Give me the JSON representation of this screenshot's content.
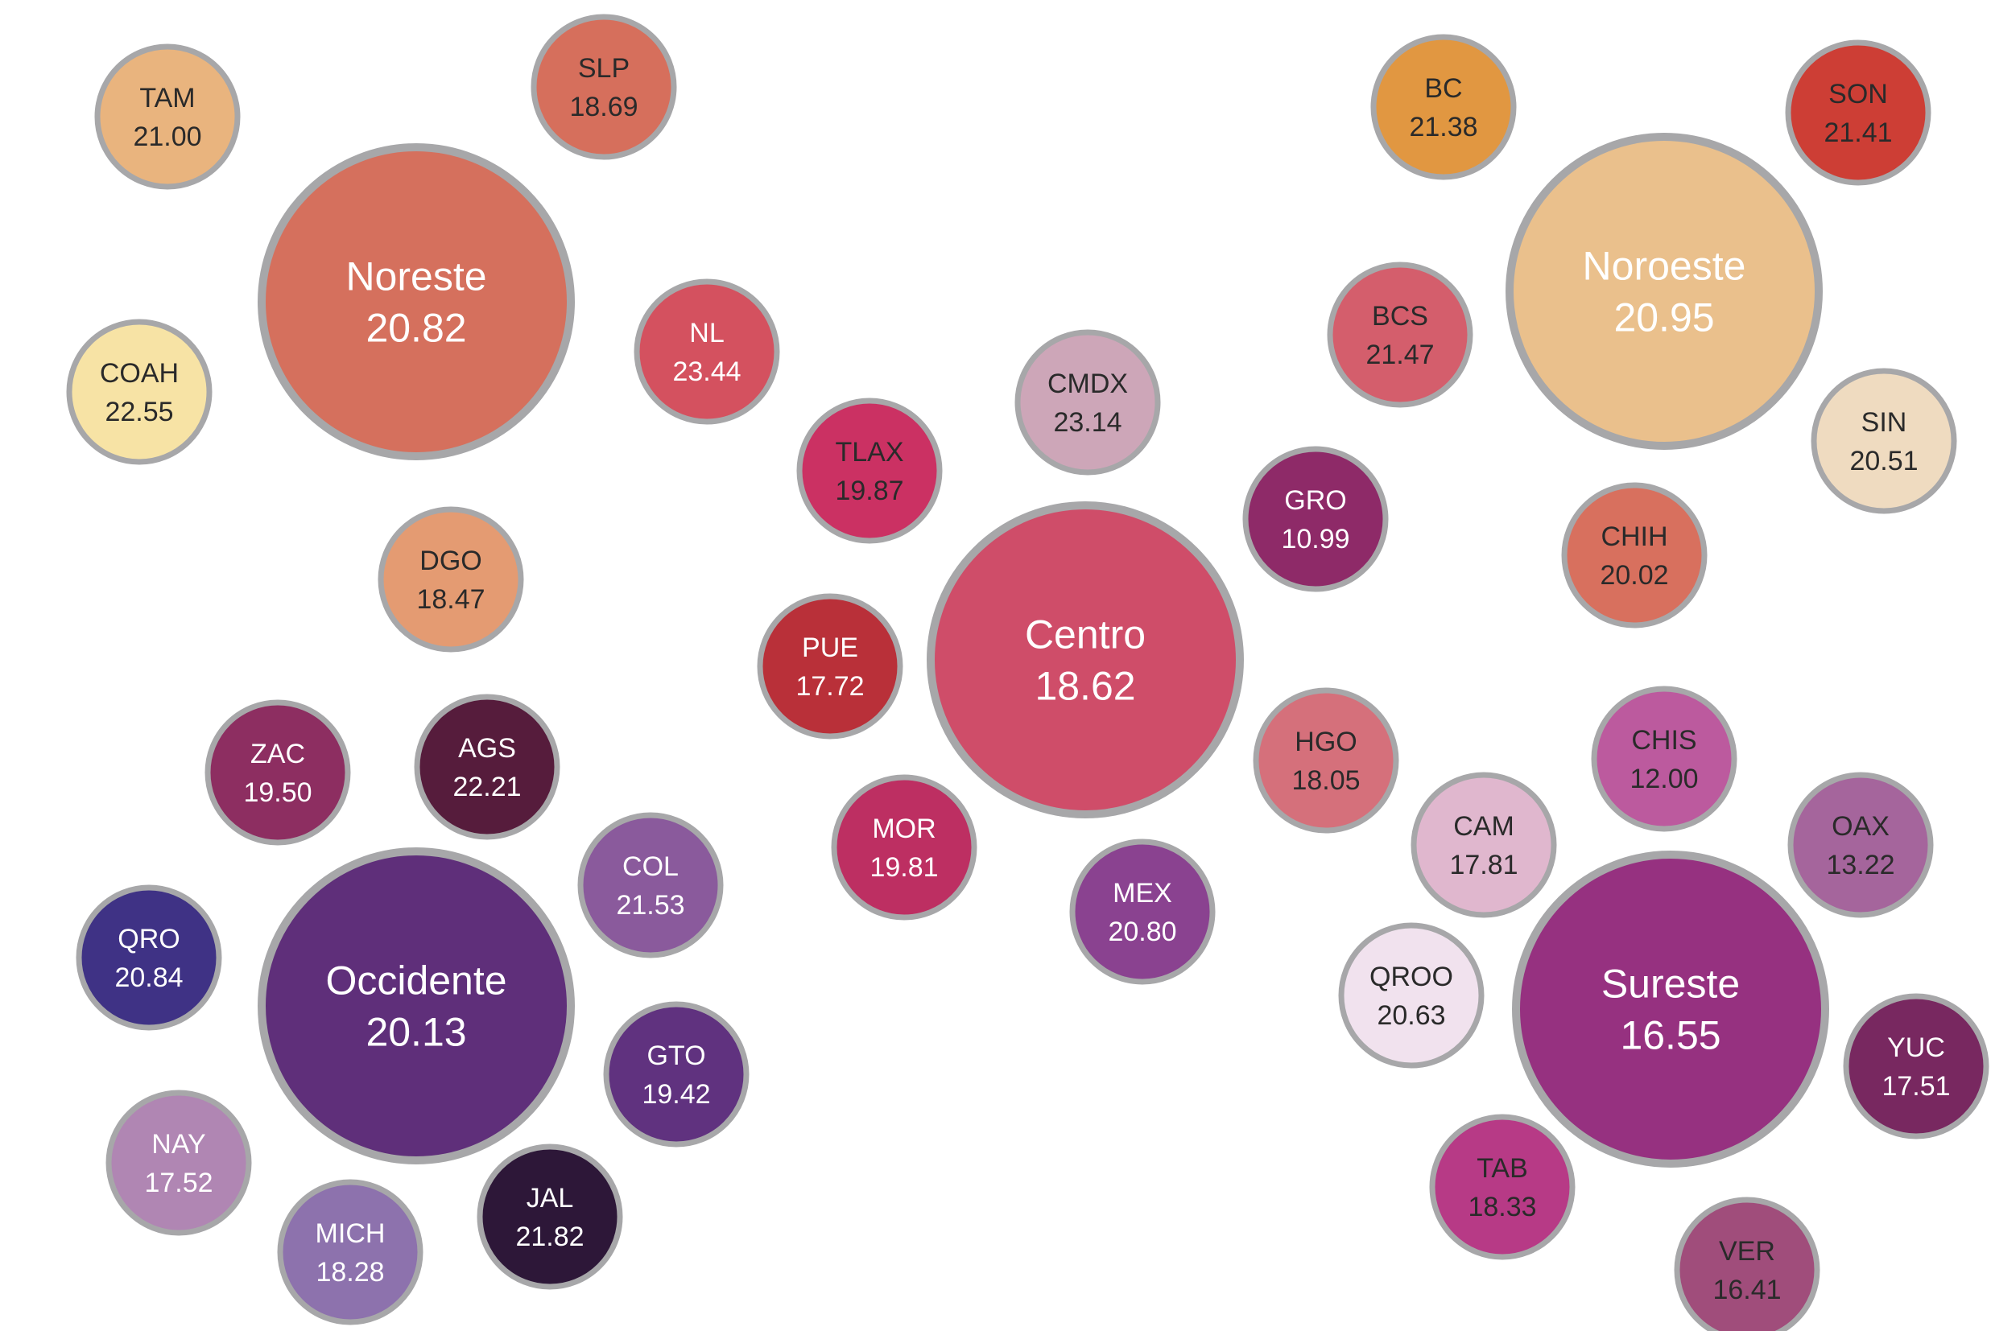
{
  "chart_data": {
    "type": "bubble",
    "border_color": "#a7a7a9",
    "regions": [
      {
        "name": "Noreste",
        "value": "20.82",
        "color": "#d5705d",
        "text_color": "#ffffff"
      },
      {
        "name": "Noroeste",
        "value": "20.95",
        "color": "#eac08c",
        "text_color": "#ffffff"
      },
      {
        "name": "Centro",
        "value": "18.62",
        "color": "#cf4d69",
        "text_color": "#ffffff"
      },
      {
        "name": "Occidente",
        "value": "20.13",
        "color": "#5f2f7a",
        "text_color": "#ffffff"
      },
      {
        "name": "Sureste",
        "value": "16.55",
        "color": "#963180",
        "text_color": "#ffffff"
      }
    ],
    "states": [
      {
        "name": "TAM",
        "value": "21.00",
        "region": "Noreste",
        "color": "#e9b47e",
        "text_color": "#2a2a2a"
      },
      {
        "name": "SLP",
        "value": "18.69",
        "region": "Noreste",
        "color": "#d66f5c",
        "text_color": "#2a2a2a"
      },
      {
        "name": "COAH",
        "value": "22.55",
        "region": "Noreste",
        "color": "#f7e3a5",
        "text_color": "#2a2a2a"
      },
      {
        "name": "NL",
        "value": "23.44",
        "region": "Noreste",
        "color": "#d4515f",
        "text_color": "#ffffff"
      },
      {
        "name": "DGO",
        "value": "18.47",
        "region": "Noreste",
        "color": "#e49b72",
        "text_color": "#2a2a2a"
      },
      {
        "name": "BC",
        "value": "21.38",
        "region": "Noroeste",
        "color": "#e19741",
        "text_color": "#2a2a2a"
      },
      {
        "name": "SON",
        "value": "21.41",
        "region": "Noroeste",
        "color": "#cd3e35",
        "text_color": "#2a2a2a"
      },
      {
        "name": "BCS",
        "value": "21.47",
        "region": "Noroeste",
        "color": "#d45e6c",
        "text_color": "#2a2a2a"
      },
      {
        "name": "SIN",
        "value": "20.51",
        "region": "Noroeste",
        "color": "#efdbc0",
        "text_color": "#2a2a2a"
      },
      {
        "name": "CHIH",
        "value": "20.02",
        "region": "Noroeste",
        "color": "#d8705e",
        "text_color": "#2a2a2a"
      },
      {
        "name": "CMDX",
        "value": "23.14",
        "region": "Centro",
        "color": "#cda6b8",
        "text_color": "#2a2a2a"
      },
      {
        "name": "TLAX",
        "value": "19.87",
        "region": "Centro",
        "color": "#cb3163",
        "text_color": "#2a2a2a"
      },
      {
        "name": "GRO",
        "value": "10.99",
        "region": "Centro",
        "color": "#8e2a68",
        "text_color": "#ffffff"
      },
      {
        "name": "PUE",
        "value": "17.72",
        "region": "Centro",
        "color": "#b93039",
        "text_color": "#ffffff"
      },
      {
        "name": "HGO",
        "value": "18.05",
        "region": "Centro",
        "color": "#d5707b",
        "text_color": "#2a2a2a"
      },
      {
        "name": "MOR",
        "value": "19.81",
        "region": "Centro",
        "color": "#bd2f62",
        "text_color": "#ffffff"
      },
      {
        "name": "MEX",
        "value": "20.80",
        "region": "Centro",
        "color": "#8a4290",
        "text_color": "#ffffff"
      },
      {
        "name": "ZAC",
        "value": "19.50",
        "region": "Occidente",
        "color": "#8d2e61",
        "text_color": "#ffffff"
      },
      {
        "name": "AGS",
        "value": "22.21",
        "region": "Occidente",
        "color": "#561c3c",
        "text_color": "#ffffff"
      },
      {
        "name": "COL",
        "value": "21.53",
        "region": "Occidente",
        "color": "#8a5a9c",
        "text_color": "#ffffff"
      },
      {
        "name": "QRO",
        "value": "20.84",
        "region": "Occidente",
        "color": "#3f3285",
        "text_color": "#ffffff"
      },
      {
        "name": "GTO",
        "value": "19.42",
        "region": "Occidente",
        "color": "#60327f",
        "text_color": "#ffffff"
      },
      {
        "name": "NAY",
        "value": "17.52",
        "region": "Occidente",
        "color": "#b086b3",
        "text_color": "#ffffff"
      },
      {
        "name": "JAL",
        "value": "21.82",
        "region": "Occidente",
        "color": "#2d1738",
        "text_color": "#ffffff"
      },
      {
        "name": "MICH",
        "value": "18.28",
        "region": "Occidente",
        "color": "#8d72ad",
        "text_color": "#ffffff"
      },
      {
        "name": "CHIS",
        "value": "12.00",
        "region": "Sureste",
        "color": "#bc5a9e",
        "text_color": "#2a2a2a"
      },
      {
        "name": "CAM",
        "value": "17.81",
        "region": "Sureste",
        "color": "#e0b7ce",
        "text_color": "#2a2a2a"
      },
      {
        "name": "OAX",
        "value": "13.22",
        "region": "Sureste",
        "color": "#a5659c",
        "text_color": "#2a2a2a"
      },
      {
        "name": "QROO",
        "value": "20.63",
        "region": "Sureste",
        "color": "#f1e2ee",
        "text_color": "#2a2a2a"
      },
      {
        "name": "YUC",
        "value": "17.51",
        "region": "Sureste",
        "color": "#782860",
        "text_color": "#ffffff"
      },
      {
        "name": "TAB",
        "value": "18.33",
        "region": "Sureste",
        "color": "#b73a86",
        "text_color": "#2a2a2a"
      },
      {
        "name": "VER",
        "value": "16.41",
        "region": "Sureste",
        "color": "#a04d7b",
        "text_color": "#2a2a2a"
      }
    ]
  }
}
